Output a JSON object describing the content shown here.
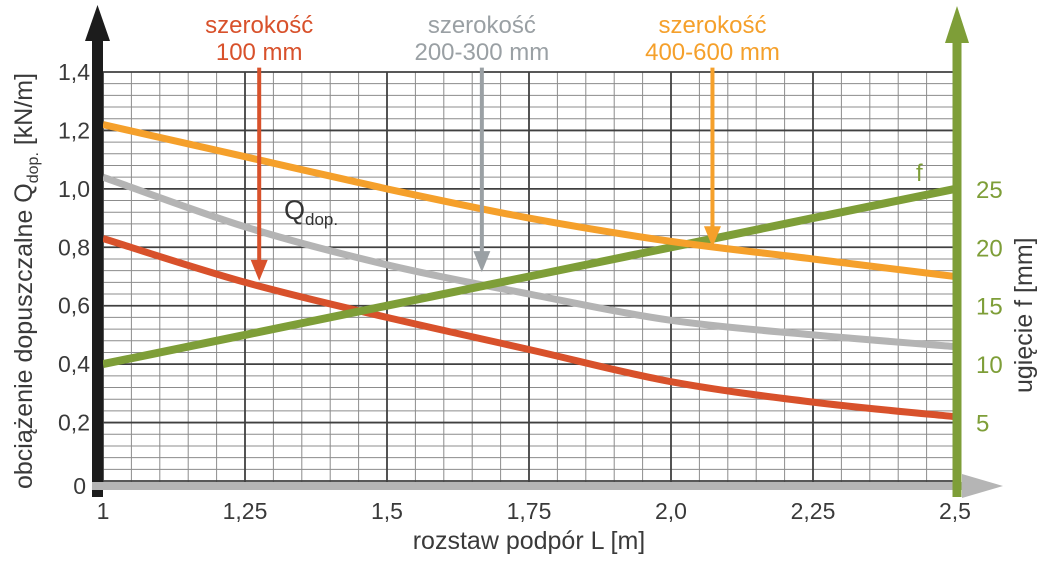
{
  "colors": {
    "background": "#ffffff",
    "axis_left": "#1c1c1c",
    "axis_bottom": "#b5b5b5",
    "axis_right": "#7e9e38",
    "grid_minor": "#8c8c8c",
    "grid_major": "#404040",
    "tick_text": "#3a3a3a",
    "series_100": "#d8512b",
    "series_200_300": "#b4b4b4",
    "series_400_600": "#f5a02b",
    "deflection_green": "#7e9e38"
  },
  "chart_data": {
    "type": "line",
    "title": "",
    "xlabel": "rozstaw podpór L [m]",
    "ylabel_left": "obciążenie dopuszczalne Qdop. [kN/m]",
    "ylabel_left_parts": {
      "pre": "obciążenie dopuszczalne Q",
      "sub": "dop.",
      "post": " [kN/m]"
    },
    "ylabel_right": "ugięcie f [mm]",
    "xlim": [
      1,
      2.5
    ],
    "ylim_left": [
      0,
      1.4
    ],
    "ylim_right": [
      0,
      35
    ],
    "x": [
      1,
      1.25,
      1.5,
      1.75,
      2,
      2.25,
      2.5
    ],
    "x_tick_labels": [
      "1",
      "1,25",
      "1,5",
      "1,75",
      "2,0",
      "2,25",
      "2,5"
    ],
    "y_ticks_left": [
      0,
      0.2,
      0.4,
      0.6,
      0.8,
      1.0,
      1.2,
      1.4
    ],
    "y_tick_labels_left": [
      "0",
      "0,2",
      "0,4",
      "0,6",
      "0,8",
      "1,0",
      "1,2",
      "1,4"
    ],
    "y_ticks_right": [
      5,
      10,
      15,
      20,
      25
    ],
    "y_tick_labels_right": [
      "5",
      "10",
      "15",
      "20",
      "25"
    ],
    "grid": {
      "x_minor_step": 0.05,
      "x_major_step": 0.25,
      "y_minor_step": 0.04,
      "y_major_step": 0.2,
      "visible": true
    },
    "legend": "none (labels drawn as callouts with arrows)",
    "series": [
      {
        "name": "szerokość 100 mm",
        "axis": "left",
        "unit": "kN/m",
        "color": "#d8512b",
        "smooth": true,
        "values": [
          0.83,
          0.68,
          0.56,
          0.45,
          0.34,
          0.27,
          0.22
        ]
      },
      {
        "name": "szerokość 200-300 mm",
        "axis": "left",
        "unit": "kN/m",
        "color": "#b4b4b4",
        "smooth": true,
        "values": [
          1.04,
          0.87,
          0.74,
          0.64,
          0.55,
          0.5,
          0.46
        ]
      },
      {
        "name": "szerokość 400-600 mm",
        "axis": "left",
        "unit": "kN/m",
        "color": "#f5a02b",
        "smooth": true,
        "values": [
          1.22,
          1.11,
          1.0,
          0.9,
          0.82,
          0.76,
          0.7
        ]
      },
      {
        "name": "f",
        "axis": "right",
        "unit": "mm",
        "color": "#7e9e38",
        "smooth": false,
        "values": [
          10,
          12.5,
          15,
          17.5,
          20,
          22.5,
          25
        ]
      }
    ],
    "callouts": [
      {
        "line1": "szerokość",
        "line2": "100 mm",
        "color": "#d8512b",
        "x": 1.275,
        "arrow_top_q": 1.415,
        "arrow_tip_q": 0.685
      },
      {
        "line1": "szerokość",
        "line2": "200-300 mm",
        "color": "#9aa0a4",
        "x": 1.667,
        "arrow_top_q": 1.415,
        "arrow_tip_q": 0.715
      },
      {
        "line1": "szerokość",
        "line2": "400-600 mm",
        "color": "#f5a02b",
        "x": 2.073,
        "arrow_top_q": 1.415,
        "arrow_tip_q": 0.8
      }
    ],
    "inline_labels": {
      "q_main": "Q",
      "q_sub": "dop.",
      "f": "f"
    }
  }
}
